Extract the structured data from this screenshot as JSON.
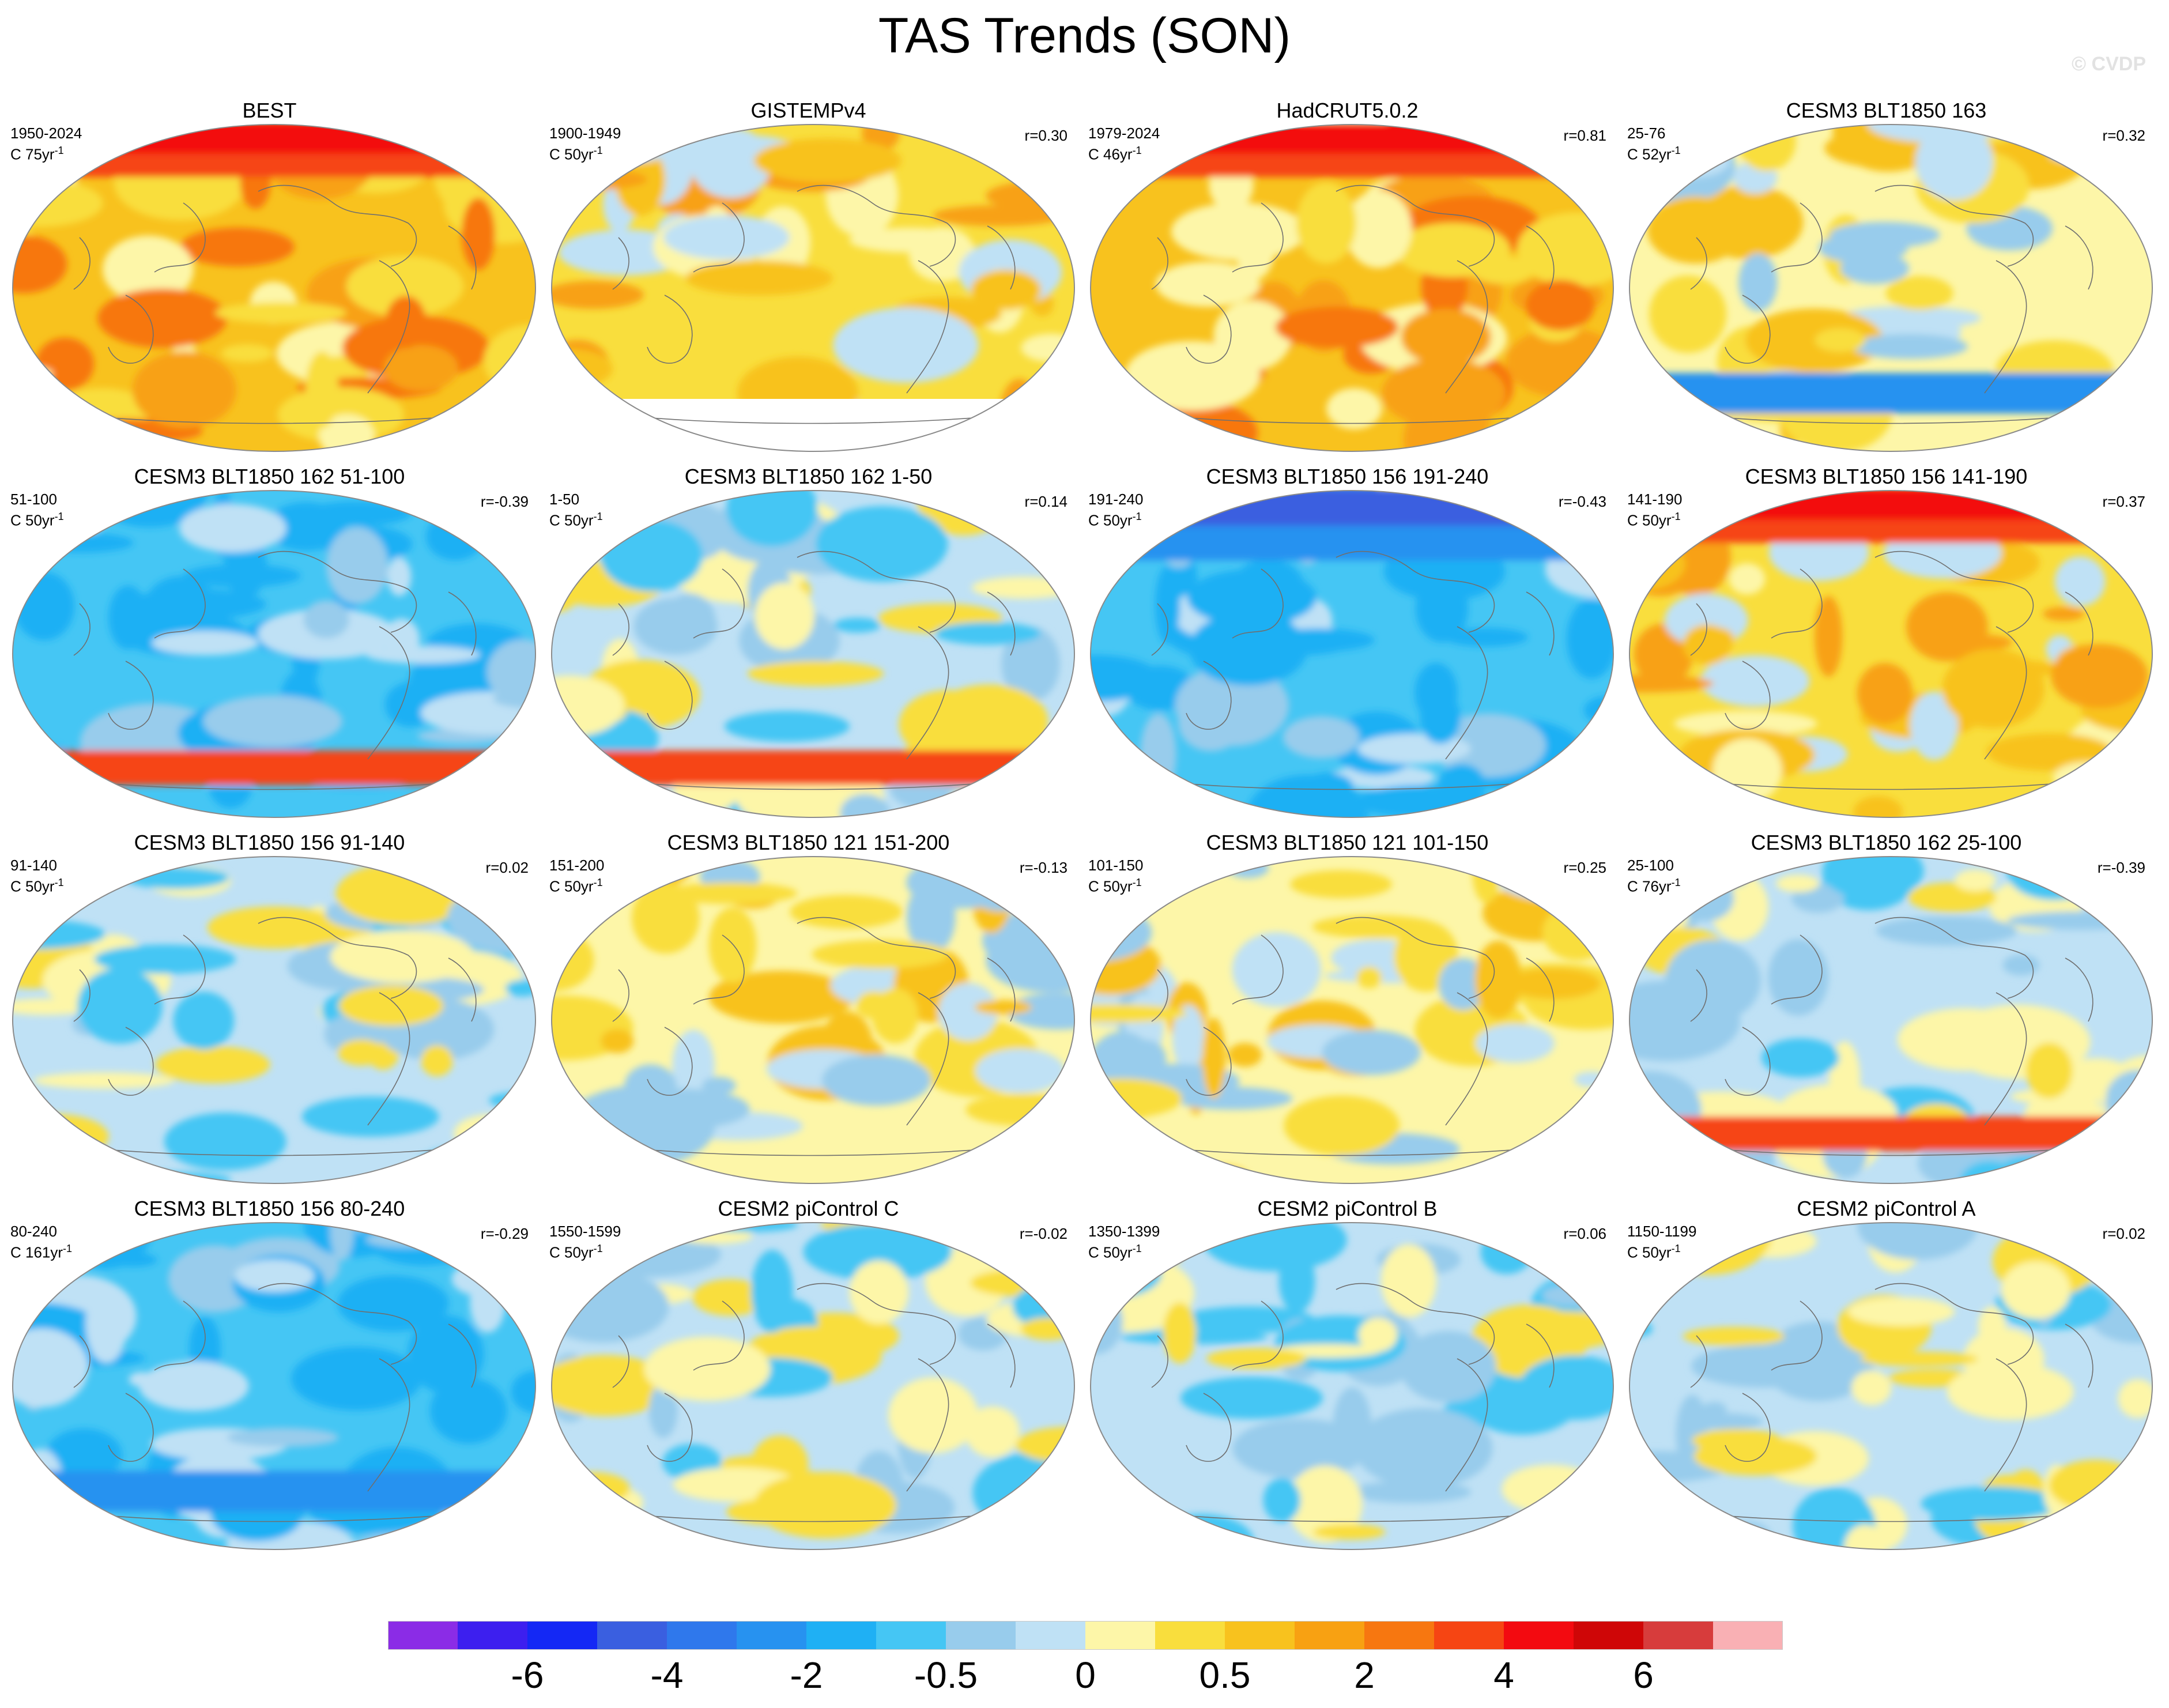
{
  "title": "TAS Trends (SON)",
  "watermark": "© CVDP",
  "panels": [
    {
      "title": "BEST",
      "period": "1950-2024",
      "units": "C 75yr",
      "corr": "",
      "base": 4,
      "hot": "ne",
      "blob": "arctic-hot"
    },
    {
      "title": "GISTEMPv4",
      "period": "1900-1949",
      "units": "C 50yr",
      "corr": "r=0.30",
      "base": 3,
      "hot": "mix",
      "blob": "antarctic-missing"
    },
    {
      "title": "HadCRUT5.0.2",
      "period": "1979-2024",
      "units": "C 46yr",
      "corr": "r=0.81",
      "base": 4,
      "hot": "ne",
      "blob": "arctic-hot"
    },
    {
      "title": "CESM3 BLT1850 163",
      "period": "25-76",
      "units": "C 52yr",
      "corr": "r=0.32",
      "base": 2,
      "hot": "mix",
      "blob": "south-cold"
    },
    {
      "title": "CESM3 BLT1850 162 51-100",
      "period": "51-100",
      "units": "C 50yr",
      "corr": "r=-0.39",
      "base": 0,
      "hot": "mix",
      "blob": "south-hot"
    },
    {
      "title": "CESM3 BLT1850 162 1-50",
      "period": "1-50",
      "units": "C 50yr",
      "corr": "r=0.14",
      "base": 1,
      "hot": "mix",
      "blob": "south-hot"
    },
    {
      "title": "CESM3 BLT1850 156 191-240",
      "period": "191-240",
      "units": "C 50yr",
      "corr": "r=-0.43",
      "base": 0,
      "hot": "mix",
      "blob": "arctic-cold"
    },
    {
      "title": "CESM3 BLT1850 156 141-190",
      "period": "141-190",
      "units": "C 50yr",
      "corr": "r=0.37",
      "base": 3,
      "hot": "mix",
      "blob": "arctic-hot"
    },
    {
      "title": "CESM3 BLT1850 156 91-140",
      "period": "91-140",
      "units": "C 50yr",
      "corr": "r=0.02",
      "base": 1,
      "hot": "mix",
      "blob": "none"
    },
    {
      "title": "CESM3 BLT1850 121 151-200",
      "period": "151-200",
      "units": "C 50yr",
      "corr": "r=-0.13",
      "base": 2,
      "hot": "mix",
      "blob": "none"
    },
    {
      "title": "CESM3 BLT1850 121 101-150",
      "period": "101-150",
      "units": "C 50yr",
      "corr": "r=0.25",
      "base": 2,
      "hot": "mix",
      "blob": "none"
    },
    {
      "title": "CESM3 BLT1850 162 25-100",
      "period": "25-100",
      "units": "C 76yr",
      "corr": "r=-0.39",
      "base": 1,
      "hot": "mix",
      "blob": "south-hot"
    },
    {
      "title": "CESM3 BLT1850 156 80-240",
      "period": "80-240",
      "units": "C 161yr",
      "corr": "r=-0.29",
      "base": 0,
      "hot": "mix",
      "blob": "south-cold"
    },
    {
      "title": "CESM2 piControl C",
      "period": "1550-1599",
      "units": "C 50yr",
      "corr": "r=-0.02",
      "base": 1,
      "hot": "mix",
      "blob": "none"
    },
    {
      "title": "CESM2 piControl B",
      "period": "1350-1399",
      "units": "C 50yr",
      "corr": "r=0.06",
      "base": 1,
      "hot": "mix",
      "blob": "none"
    },
    {
      "title": "CESM2 piControl A",
      "period": "1150-1199",
      "units": "C 50yr",
      "corr": "r=0.02",
      "base": 1,
      "hot": "mix",
      "blob": "none"
    }
  ],
  "colorbar": {
    "colors": [
      "#8b2ce6",
      "#3d1fef",
      "#1428f5",
      "#3a5fe0",
      "#2f78ec",
      "#2792f0",
      "#1fb0f4",
      "#45c6f4",
      "#98ccec",
      "#bfe1f5",
      "#fdf6a8",
      "#f9de3d",
      "#f8c21e",
      "#f8a112",
      "#f77710",
      "#f64513",
      "#f30a10",
      "#cf0607",
      "#d73c3c",
      "#f9b0b4"
    ],
    "labels": [
      {
        "text": "-6",
        "index": 2
      },
      {
        "text": "-4",
        "index": 4
      },
      {
        "text": "-2",
        "index": 6
      },
      {
        "text": "-0.5",
        "index": 8
      },
      {
        "text": "0",
        "index": 10
      },
      {
        "text": "0.5",
        "index": 12
      },
      {
        "text": "2",
        "index": 14
      },
      {
        "text": "4",
        "index": 16
      },
      {
        "text": "6",
        "index": 18
      }
    ]
  }
}
